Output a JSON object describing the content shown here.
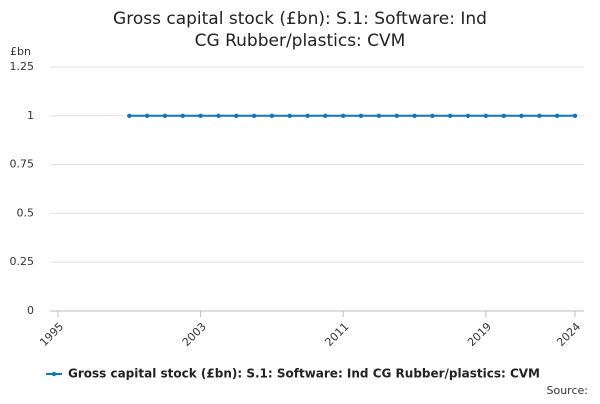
{
  "chart_data": {
    "type": "line",
    "title": "Gross capital stock (£bn): S.1: Software: Ind CG Rubber/plastics: CVM",
    "y_unit": "£bn",
    "source": "Source:",
    "x": [
      1999,
      2000,
      2001,
      2002,
      2003,
      2004,
      2005,
      2006,
      2007,
      2008,
      2009,
      2010,
      2011,
      2012,
      2013,
      2014,
      2015,
      2016,
      2017,
      2018,
      2019,
      2020,
      2021,
      2022,
      2023,
      2024
    ],
    "series": [
      {
        "name": "Gross capital stock (£bn): S.1: Software: Ind CG Rubber/plastics: CVM",
        "color": "#0f76b8",
        "values": [
          1,
          1,
          1,
          1,
          1,
          1,
          1,
          1,
          1,
          1,
          1,
          1,
          1,
          1,
          1,
          1,
          1,
          1,
          1,
          1,
          1,
          1,
          1,
          1,
          1,
          1
        ]
      }
    ],
    "xlim": [
      1995,
      2024
    ],
    "xticks": [
      1995,
      2003,
      2011,
      2019,
      2024
    ],
    "ylim": [
      0,
      1.25
    ],
    "yticks": [
      0,
      0.25,
      0.5,
      0.75,
      1,
      1.25
    ],
    "grid": true
  }
}
